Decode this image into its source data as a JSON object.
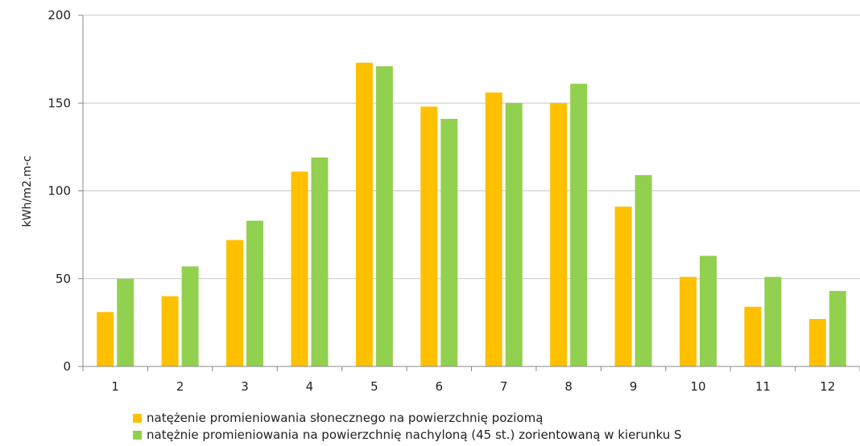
{
  "chart_data": {
    "type": "bar",
    "title": "",
    "xlabel": "",
    "ylabel": "kWh/m2.m-c",
    "ylim": [
      0,
      200
    ],
    "yticks": [
      0,
      50,
      100,
      150,
      200
    ],
    "grid": true,
    "legend_position": "bottom",
    "categories": [
      "1",
      "2",
      "3",
      "4",
      "5",
      "6",
      "7",
      "8",
      "9",
      "10",
      "11",
      "12"
    ],
    "series": [
      {
        "name": "natężenie promieniowania słonecznego na powierzchnię poziomą",
        "color": "#ffc000",
        "values": [
          31,
          40,
          72,
          111,
          173,
          148,
          156,
          150,
          91,
          51,
          34,
          27
        ]
      },
      {
        "name": "natężnie promieniowania na powierzchnię nachyloną (45 st.) zorientowaną w kierunku S",
        "color": "#92d050",
        "values": [
          50,
          57,
          83,
          119,
          171,
          141,
          150,
          161,
          109,
          63,
          51,
          43
        ]
      }
    ]
  }
}
